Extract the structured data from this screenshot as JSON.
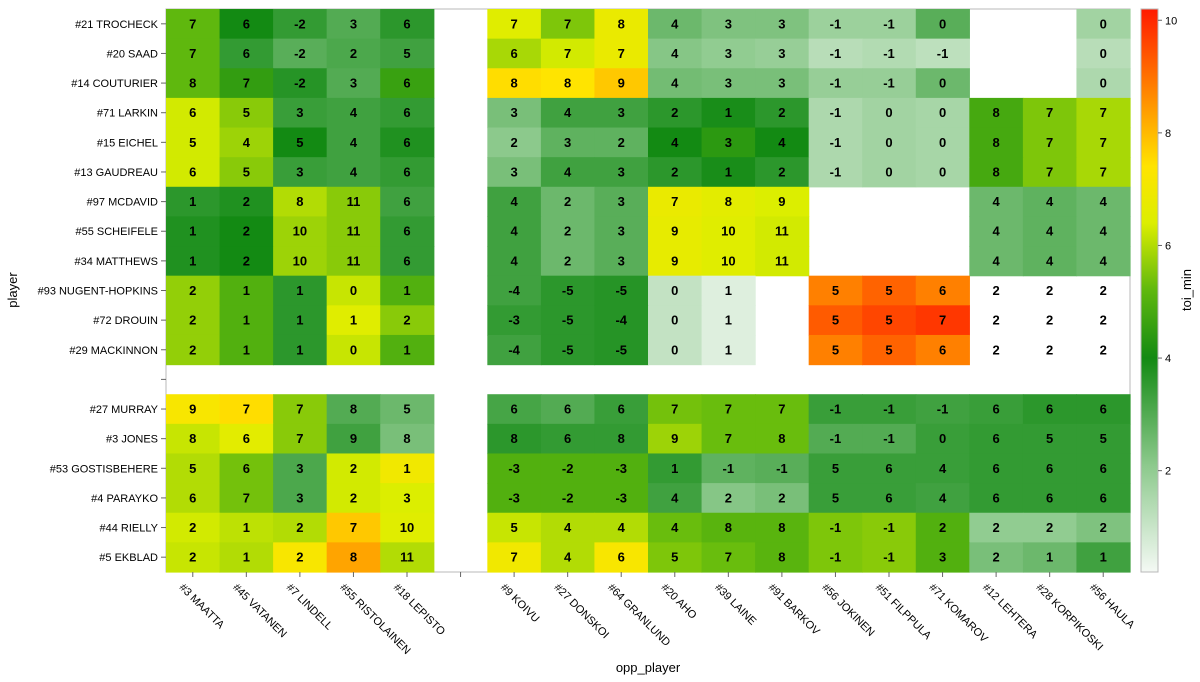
{
  "chart_data": {
    "type": "heatmap",
    "xlabel": "opp_player",
    "ylabel": "player",
    "colorbar_title": "toi_min",
    "colorbar_ticks": [
      2,
      4,
      6,
      8,
      10
    ],
    "colorbar_range": [
      0.2,
      10.2
    ],
    "players": [
      "#21 TROCHECK",
      "#20 SAAD",
      "#14 COUTURIER",
      "#71 LARKIN",
      "#15 EICHEL",
      "#13 GAUDREAU",
      "#97 MCDAVID",
      "#55 SCHEIFELE",
      "#34 MATTHEWS",
      "#93 NUGENT-HOPKINS",
      "#72 DROUIN",
      "#29 MACKINNON",
      "",
      "#27 MURRAY",
      "#3 JONES",
      "#53 GOSTISBEHERE",
      "#4 PARAYKO",
      "#44 RIELLY",
      "#5 EKBLAD"
    ],
    "opp_players": [
      "#3 MAATTA",
      "#45 VATANEN",
      "#7 LINDELL",
      "#55 RISTOLAINEN",
      "#18 LEPISTO",
      "",
      "#9 KOIVU",
      "#27 DONSKOI",
      "#64 GRANLUND",
      "#20 AHO",
      "#39 LAINE",
      "#91 BARKOV",
      "#56 JOKINEN",
      "#51 FILPPULA",
      "#71 KOMAROV",
      "#12 LEHTERA",
      "#28 KORPIKOSKI",
      "#56 HAULA"
    ],
    "cell_labels": [
      [
        7,
        6,
        -2,
        3,
        6,
        null,
        7,
        7,
        8,
        4,
        3,
        3,
        -1,
        -1,
        0,
        null,
        null,
        0
      ],
      [
        7,
        6,
        -2,
        2,
        5,
        null,
        6,
        7,
        7,
        4,
        3,
        3,
        -1,
        -1,
        -1,
        null,
        null,
        0
      ],
      [
        8,
        7,
        -2,
        3,
        6,
        null,
        8,
        8,
        9,
        4,
        3,
        3,
        -1,
        -1,
        0,
        null,
        null,
        0
      ],
      [
        6,
        5,
        3,
        4,
        6,
        null,
        3,
        4,
        3,
        2,
        1,
        2,
        -1,
        0,
        0,
        8,
        7,
        7
      ],
      [
        5,
        4,
        5,
        4,
        6,
        null,
        2,
        3,
        2,
        4,
        3,
        4,
        -1,
        0,
        0,
        8,
        7,
        7
      ],
      [
        6,
        5,
        3,
        4,
        6,
        null,
        3,
        4,
        3,
        2,
        1,
        2,
        -1,
        0,
        0,
        8,
        7,
        7
      ],
      [
        1,
        2,
        8,
        11,
        6,
        null,
        4,
        2,
        3,
        7,
        8,
        9,
        null,
        null,
        null,
        4,
        4,
        4
      ],
      [
        1,
        2,
        10,
        11,
        6,
        null,
        4,
        2,
        3,
        9,
        10,
        11,
        null,
        null,
        null,
        4,
        4,
        4
      ],
      [
        1,
        2,
        10,
        11,
        6,
        null,
        4,
        2,
        3,
        9,
        10,
        11,
        null,
        null,
        null,
        4,
        4,
        4
      ],
      [
        2,
        1,
        1,
        0,
        1,
        null,
        -4,
        -5,
        -5,
        0,
        1,
        null,
        5,
        5,
        6,
        2,
        2,
        2
      ],
      [
        2,
        1,
        1,
        1,
        2,
        null,
        -3,
        -5,
        -4,
        0,
        1,
        null,
        5,
        5,
        7,
        2,
        2,
        2
      ],
      [
        2,
        1,
        1,
        0,
        1,
        null,
        -4,
        -5,
        -5,
        0,
        1,
        null,
        5,
        5,
        6,
        2,
        2,
        2
      ],
      [
        null,
        null,
        null,
        null,
        null,
        null,
        null,
        null,
        null,
        null,
        null,
        null,
        null,
        null,
        null,
        null,
        null,
        null
      ],
      [
        9,
        7,
        7,
        8,
        5,
        null,
        6,
        6,
        6,
        7,
        7,
        7,
        -1,
        -1,
        -1,
        6,
        6,
        6
      ],
      [
        8,
        6,
        7,
        9,
        8,
        null,
        8,
        6,
        8,
        9,
        7,
        8,
        -1,
        -1,
        0,
        6,
        5,
        5
      ],
      [
        5,
        6,
        3,
        2,
        1,
        null,
        -3,
        -2,
        -3,
        1,
        -1,
        -1,
        5,
        6,
        4,
        6,
        6,
        6
      ],
      [
        6,
        7,
        3,
        2,
        3,
        null,
        -3,
        -2,
        -3,
        4,
        2,
        2,
        5,
        6,
        4,
        6,
        6,
        6
      ],
      [
        2,
        1,
        2,
        7,
        10,
        null,
        5,
        4,
        4,
        4,
        8,
        8,
        -1,
        -1,
        2,
        2,
        2,
        2
      ],
      [
        2,
        1,
        2,
        8,
        11,
        null,
        7,
        4,
        6,
        5,
        7,
        8,
        -1,
        -1,
        3,
        2,
        1,
        1
      ]
    ],
    "toi_min": [
      [
        5.2,
        4.0,
        3.5,
        3.0,
        3.6,
        null,
        6.5,
        5.5,
        6.8,
        2.6,
        2.3,
        2.3,
        1.8,
        1.8,
        2.9,
        null,
        null,
        1.7
      ],
      [
        5.2,
        3.5,
        2.9,
        3.1,
        3.3,
        null,
        5.9,
        6.3,
        6.8,
        2.2,
        2.0,
        1.9,
        1.3,
        1.4,
        1.2,
        null,
        null,
        1.3
      ],
      [
        5.2,
        4.5,
        3.7,
        3.0,
        4.6,
        null,
        7.5,
        7.4,
        7.8,
        2.5,
        2.4,
        2.4,
        1.9,
        1.9,
        2.6,
        null,
        null,
        1.5
      ],
      [
        6.3,
        5.6,
        3.4,
        3.3,
        3.5,
        null,
        2.4,
        3.3,
        3.3,
        3.6,
        3.9,
        3.6,
        1.5,
        1.7,
        1.6,
        4.8,
        5.5,
        5.9
      ],
      [
        6.3,
        5.8,
        4.0,
        3.3,
        3.8,
        null,
        2.1,
        2.8,
        2.8,
        4.0,
        4.4,
        4.0,
        1.5,
        1.7,
        1.6,
        4.8,
        5.5,
        5.9
      ],
      [
        6.3,
        5.6,
        3.4,
        3.3,
        3.5,
        null,
        2.4,
        3.3,
        3.3,
        3.6,
        3.9,
        3.6,
        1.5,
        1.7,
        1.6,
        4.8,
        5.5,
        5.9
      ],
      [
        3.6,
        3.8,
        6.0,
        5.6,
        3.3,
        null,
        3.3,
        2.6,
        2.9,
        6.8,
        6.6,
        6.4,
        null,
        null,
        null,
        2.6,
        2.8,
        2.6
      ],
      [
        3.8,
        4.0,
        5.8,
        5.6,
        3.5,
        null,
        3.3,
        2.6,
        2.9,
        6.7,
        6.5,
        6.3,
        null,
        null,
        null,
        2.6,
        2.8,
        2.6
      ],
      [
        3.8,
        4.0,
        5.8,
        5.6,
        3.5,
        null,
        3.3,
        2.6,
        2.9,
        6.7,
        6.5,
        6.3,
        null,
        null,
        null,
        2.6,
        2.8,
        2.6
      ],
      [
        5.7,
        5.0,
        3.6,
        6.2,
        5.0,
        null,
        3.3,
        3.6,
        3.7,
        1.1,
        0.6,
        null,
        8.8,
        9.2,
        8.8,
        null,
        null,
        null
      ],
      [
        5.7,
        5.0,
        3.6,
        6.5,
        5.6,
        null,
        3.5,
        3.6,
        3.7,
        1.1,
        0.6,
        null,
        9.3,
        9.6,
        9.8,
        null,
        null,
        null
      ],
      [
        5.7,
        5.0,
        3.6,
        6.2,
        5.0,
        null,
        3.3,
        3.6,
        3.7,
        1.1,
        0.6,
        null,
        8.8,
        9.2,
        8.8,
        null,
        null,
        null
      ],
      [
        null,
        null,
        null,
        null,
        null,
        null,
        null,
        null,
        null,
        null,
        null,
        null,
        null,
        null,
        null,
        null,
        null,
        null
      ],
      [
        7.2,
        7.5,
        5.6,
        3.0,
        2.6,
        null,
        3.2,
        3.0,
        3.4,
        5.4,
        5.3,
        5.3,
        3.4,
        3.4,
        3.3,
        3.4,
        3.6,
        3.6
      ],
      [
        6.2,
        6.6,
        5.6,
        3.3,
        2.4,
        null,
        3.6,
        3.5,
        3.5,
        5.8,
        5.3,
        5.3,
        3.0,
        3.0,
        3.4,
        3.5,
        3.5,
        3.5
      ],
      [
        6.0,
        5.4,
        3.1,
        6.3,
        7.0,
        null,
        5.0,
        5.0,
        5.0,
        3.5,
        2.8,
        2.9,
        3.4,
        3.4,
        3.4,
        3.5,
        3.5,
        3.5
      ],
      [
        6.0,
        5.4,
        3.1,
        6.3,
        6.4,
        null,
        5.0,
        5.0,
        5.0,
        3.3,
        2.2,
        2.4,
        3.4,
        3.4,
        3.3,
        3.5,
        3.5,
        3.5
      ],
      [
        6.3,
        6.1,
        6.0,
        7.8,
        6.5,
        null,
        6.2,
        6.0,
        6.0,
        5.3,
        5.1,
        5.1,
        5.5,
        5.6,
        5.0,
        2.0,
        2.0,
        2.3
      ],
      [
        6.2,
        6.0,
        7.2,
        8.3,
        6.0,
        null,
        7.0,
        6.0,
        7.2,
        5.5,
        5.3,
        5.1,
        5.5,
        5.6,
        5.0,
        2.4,
        2.6,
        3.3
      ]
    ]
  }
}
